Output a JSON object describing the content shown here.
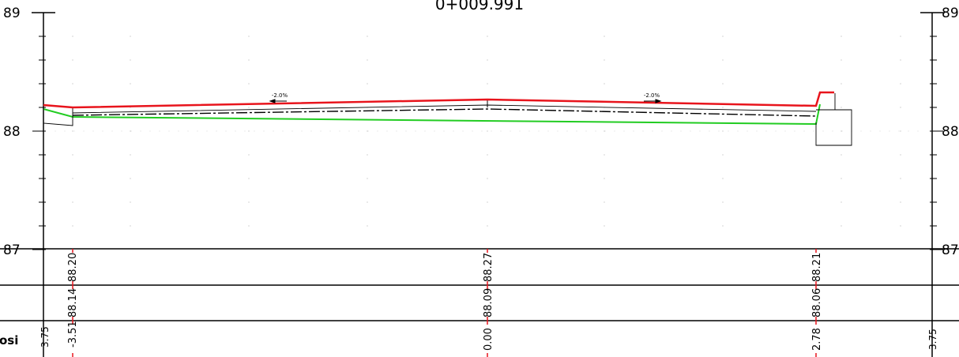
{
  "title": "0+009.991",
  "elevation_axis": {
    "left_labels": [
      "89",
      "88",
      "87"
    ],
    "right_labels": [
      "89",
      "88",
      "87"
    ]
  },
  "slopes": {
    "left": "-2.0%",
    "right": "-2.0%"
  },
  "band_rows": {
    "row3_label": "osi"
  },
  "stations": {
    "left": {
      "design_elev": "88.20",
      "ground_elev": "88.14",
      "offset": "-3.51"
    },
    "center": {
      "design_elev": "88.27",
      "ground_elev": "88.09",
      "offset": "0.00"
    },
    "right": {
      "design_elev": "88.21",
      "ground_elev": "88.06",
      "offset": "2.78"
    }
  },
  "edge_offsets": {
    "left": "3.75",
    "right": "3.75"
  },
  "colors": {
    "design_line": "#e8141c",
    "subgrade_line": "#22cc22",
    "ground_line": "#000000",
    "tick_marks": "#e8141c",
    "frame": "#000000"
  }
}
